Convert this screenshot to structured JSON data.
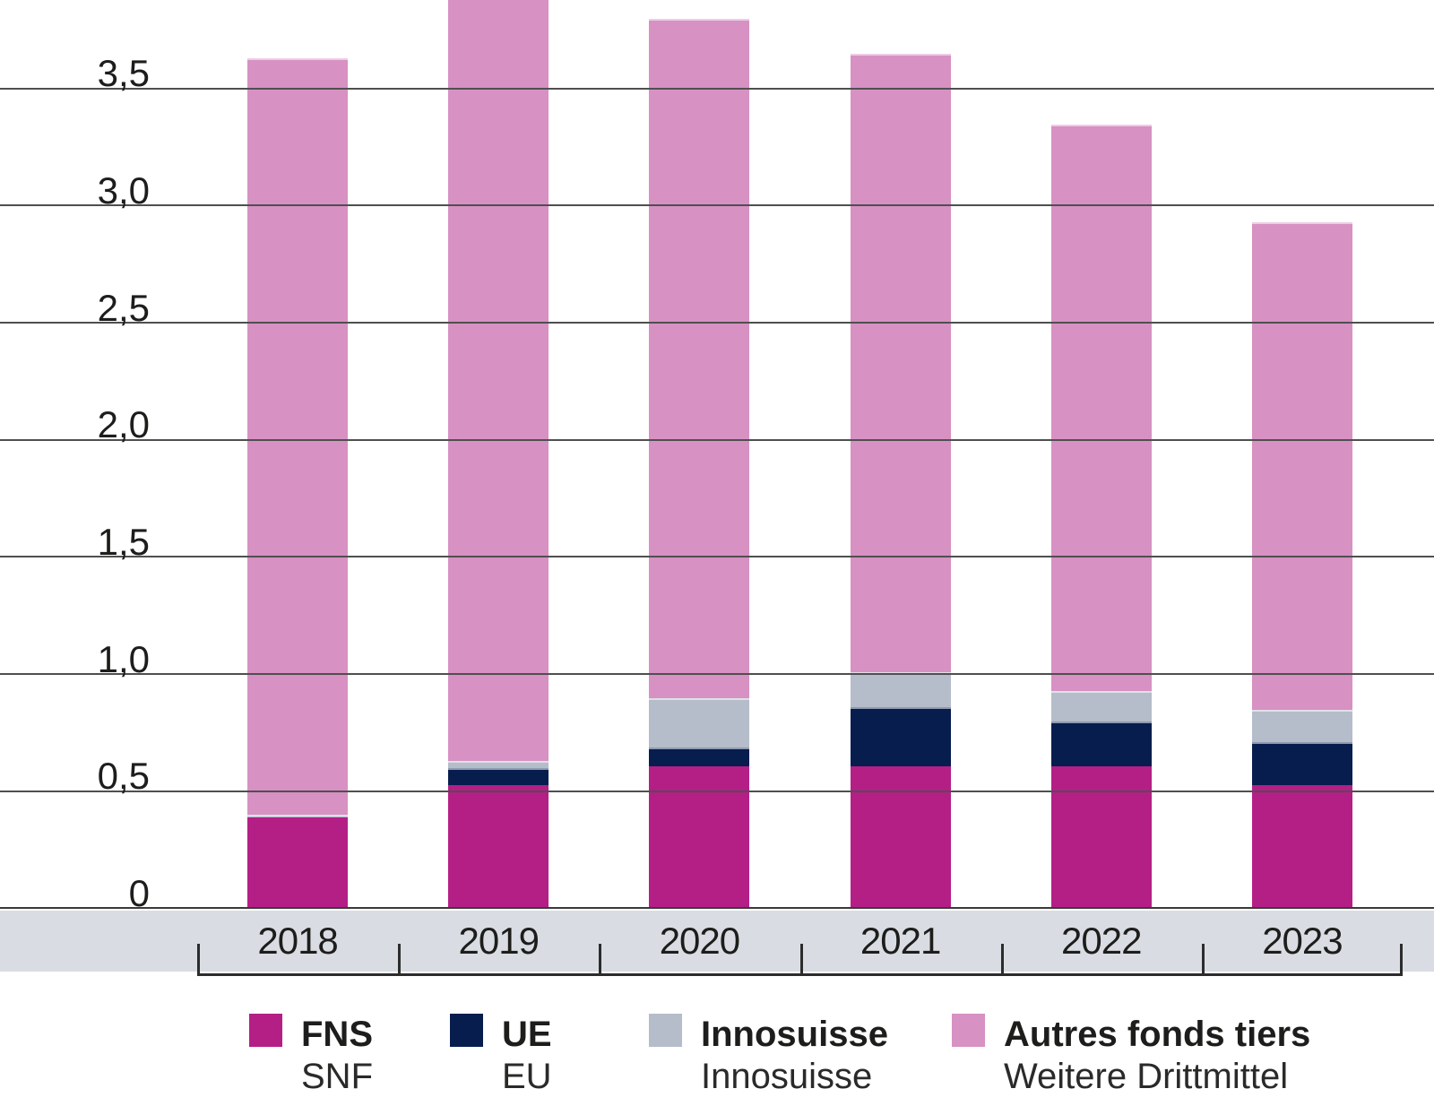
{
  "chart_data": {
    "type": "bar",
    "stacked": true,
    "categories": [
      "2018",
      "2019",
      "2020",
      "2021",
      "2022",
      "2023"
    ],
    "series": [
      {
        "name": "FNS",
        "name_de": "SNF",
        "color": "#b41f86",
        "values": [
          0.39,
          0.53,
          0.61,
          0.61,
          0.61,
          0.53
        ]
      },
      {
        "name": "UE",
        "name_de": "EU",
        "color": "#071d4e",
        "values": [
          0.0,
          0.07,
          0.08,
          0.25,
          0.19,
          0.18
        ]
      },
      {
        "name": "Innosuisse",
        "name_de": "Innosuisse",
        "color": "#b5bcca",
        "values": [
          0.01,
          0.03,
          0.21,
          0.15,
          0.13,
          0.14
        ]
      },
      {
        "name": "Autres fonds tiers",
        "name_de": "Weitere Drittmittel",
        "color": "#d791c3",
        "values": [
          3.23,
          3.32,
          2.9,
          2.64,
          2.42,
          2.08
        ]
      }
    ],
    "totals": [
      3.63,
      3.95,
      3.8,
      3.65,
      3.35,
      2.93
    ],
    "yticks": [
      {
        "v": 0,
        "label": "0"
      },
      {
        "v": 0.5,
        "label": "0,5"
      },
      {
        "v": 1,
        "label": "1,0"
      },
      {
        "v": 1.5,
        "label": "1,5"
      },
      {
        "v": 2,
        "label": "2,0"
      },
      {
        "v": 2.5,
        "label": "2,5"
      },
      {
        "v": 3,
        "label": "3,0"
      },
      {
        "v": 3.5,
        "label": "3,5"
      }
    ],
    "ylim": [
      0,
      3.88
    ],
    "grid": true,
    "gridlines_over_bars": true,
    "legend_position": "bottom"
  },
  "colors": {
    "axis_band": "#d9dde3",
    "gridline": "#4f4f4f",
    "baseline": "#3a3a3a",
    "bracket": "#2c2c2c",
    "text": "#1d1d1b"
  }
}
